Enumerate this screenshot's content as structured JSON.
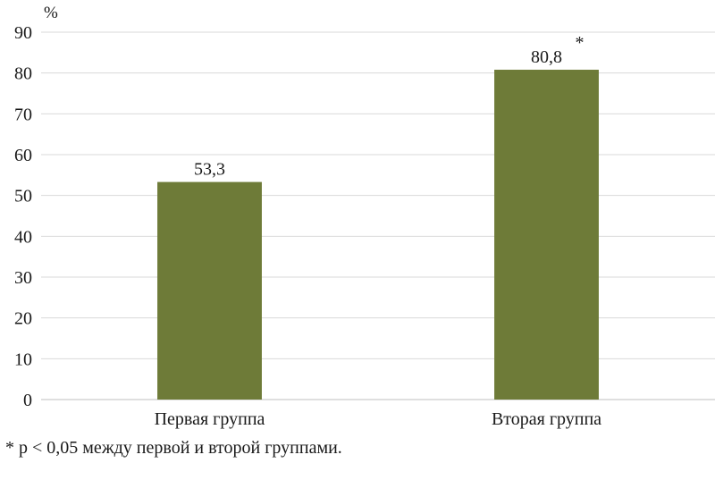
{
  "chart_data": {
    "type": "bar",
    "categories": [
      "Первая группа",
      "Вторая группа"
    ],
    "values": [
      53.3,
      80.8
    ],
    "value_labels": [
      "53,3",
      "80,8"
    ],
    "significance_markers": [
      "",
      "*"
    ],
    "ylabel": "%",
    "ylim": [
      0,
      90
    ],
    "yticks": [
      0,
      10,
      20,
      30,
      40,
      50,
      60,
      70,
      80,
      90
    ],
    "grid": true,
    "legend": "none",
    "bar_color": "#6e7b38",
    "grid_color": "#d9d9d9",
    "footnote": "* p < 0,05 между первой и второй группами."
  }
}
